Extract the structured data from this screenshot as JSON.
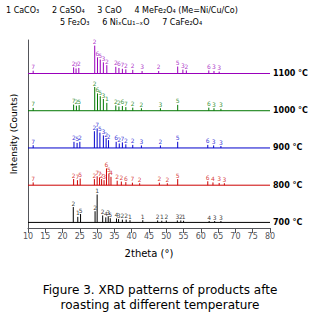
{
  "chart_data": {
    "type": "stem",
    "title": "Figure 3. XRD patterns of products afte",
    "subtitle": "roasting at different temperature",
    "xlabel": "2theta (°)",
    "ylabel": "Intensity (Counts)",
    "xlim": [
      10,
      80
    ],
    "xticks": [
      10,
      15,
      20,
      25,
      30,
      35,
      40,
      45,
      50,
      55,
      60,
      65,
      70,
      75,
      80
    ],
    "ylim": [
      -0.15,
      4.9
    ],
    "yticks": [],
    "grid": false,
    "tick_labels": "x",
    "annotations": [
      "1 CaCO₃     2 CaSO₄     3 CaO     4 MeFe₂O₄ (Me=Ni/Cu/Co)",
      "5 Fe₂O₃     6 NiₓCu₁₋ₓO     7 CaFe₂O₄"
    ],
    "series": [
      {
        "name": "700 °C",
        "color": "#000000",
        "baseline": 0,
        "x": [
          23.1,
          24.4,
          25.2,
          29.4,
          30.0,
          31.6,
          32.5,
          33.2,
          33.8,
          35.6,
          36.2,
          37.3,
          38.4,
          39.5,
          43.2,
          47.5,
          48.7,
          50.0,
          53.2,
          54.2,
          55.0,
          62.4,
          64.0,
          65.8
        ],
        "values": [
          0.4125,
          0.15,
          0.225,
          0.3,
          0.75,
          0.1875,
          0.135,
          0.165,
          0.1125,
          0.105,
          0.09,
          0.075,
          0.075,
          0.06,
          0.06,
          0.0525,
          0.045,
          0.0525,
          0.0525,
          0.0525,
          0.045,
          0.0375,
          0.0375,
          0.0375
        ],
        "labels": [
          "2",
          "1",
          "5",
          "2",
          "1",
          "2",
          "4",
          "3",
          "5",
          "4",
          "3",
          "2",
          "2",
          "1",
          "1",
          "2",
          "1",
          "2",
          "3",
          "2",
          "1",
          "4",
          "3",
          "3"
        ]
      },
      {
        "name": "800 °C",
        "color": "#cc0000",
        "baseline": 1,
        "x": [
          11.5,
          23.2,
          24.3,
          25.1,
          29.2,
          30.0,
          30.7,
          31.3,
          32.0,
          32.7,
          33.4,
          34.0,
          35.8,
          37.0,
          38.3,
          40.2,
          42.3,
          48.0,
          50.3,
          53.3,
          62.0,
          63.5,
          65.3,
          66.8
        ],
        "values": [
          1.075,
          1.165,
          1.135,
          1.18,
          1.165,
          1.24,
          1.21,
          1.165,
          1.135,
          1.45,
          1.315,
          1.225,
          1.12,
          1.0975,
          1.0825,
          1.0675,
          1.0525,
          1.0675,
          1.0525,
          1.165,
          1.105,
          1.075,
          1.06,
          1.0525
        ],
        "labels": [
          "7",
          "2",
          "7",
          "5",
          "2",
          "7",
          "7",
          "2",
          "3",
          "6",
          "5",
          "4",
          "2",
          "2",
          "6",
          "7",
          "2",
          "2",
          "2",
          "5",
          "6",
          "4",
          "3",
          "3"
        ]
      },
      {
        "name": "900 °C",
        "color": "#0000cc",
        "baseline": 2,
        "x": [
          11.5,
          23.3,
          24.2,
          25.0,
          29.2,
          30.0,
          30.8,
          31.8,
          32.6,
          33.3,
          35.5,
          36.4,
          37.3,
          38.3,
          40.3,
          42.8,
          48.3,
          53.3,
          62.0,
          63.7,
          65.8
        ],
        "values": [
          2.075,
          2.165,
          2.135,
          2.165,
          2.45,
          2.525,
          2.4125,
          2.3375,
          2.2625,
          2.21,
          2.165,
          2.12,
          2.15,
          2.0975,
          2.0825,
          2.0675,
          2.0675,
          2.165,
          2.0825,
          2.0675,
          2.0525
        ],
        "labels": [
          "7",
          "2",
          "5",
          "2",
          "2",
          "7",
          "5",
          "3",
          "2",
          "2",
          "6",
          "2",
          "7",
          "2",
          "2",
          "3",
          "2",
          "5",
          "6",
          "3",
          "3"
        ]
      },
      {
        "name": "1000 °C",
        "color": "#007700",
        "baseline": 3,
        "x": [
          11.5,
          23.2,
          24.0,
          24.8,
          29.3,
          30.1,
          30.9,
          31.8,
          32.8,
          35.4,
          36.3,
          37.3,
          38.3,
          40.3,
          42.8,
          48.3,
          53.3,
          62.3,
          63.8,
          65.8
        ],
        "values": [
          3.075,
          3.165,
          3.135,
          3.15,
          3.6375,
          3.465,
          3.39,
          3.315,
          3.21,
          3.1425,
          3.1125,
          3.1275,
          3.0975,
          3.0825,
          3.0675,
          3.0675,
          3.1575,
          3.0825,
          3.0675,
          3.0525
        ],
        "labels": [
          "7",
          "7",
          "2",
          "5",
          "2",
          "6",
          "5",
          "3",
          "1",
          "2",
          "2",
          "6",
          "7",
          "2",
          "2",
          "3",
          "5",
          "6",
          "3",
          "3"
        ]
      },
      {
        "name": "1100 °C",
        "color": "#9900bb",
        "baseline": 4,
        "x": [
          11.5,
          23.2,
          23.9,
          24.7,
          29.3,
          30.1,
          30.9,
          31.8,
          32.8,
          35.4,
          36.3,
          37.3,
          38.3,
          40.3,
          43.0,
          47.8,
          53.3,
          54.8,
          55.8,
          62.3,
          63.8,
          65.3
        ],
        "values": [
          4.075,
          4.165,
          4.135,
          4.15,
          4.75,
          4.435,
          4.375,
          4.3,
          4.225,
          4.18,
          4.15,
          4.1275,
          4.1125,
          4.0975,
          4.0675,
          4.0675,
          4.1875,
          4.105,
          4.0825,
          4.0825,
          4.0675,
          4.0525
        ],
        "labels": [
          "7",
          "2",
          "7",
          "2",
          "2",
          "6",
          "5",
          "3",
          "2",
          "2",
          "6",
          "7",
          "2",
          "2",
          "3",
          "2",
          "5",
          "3",
          "2",
          "6",
          "3",
          "3"
        ]
      }
    ]
  }
}
